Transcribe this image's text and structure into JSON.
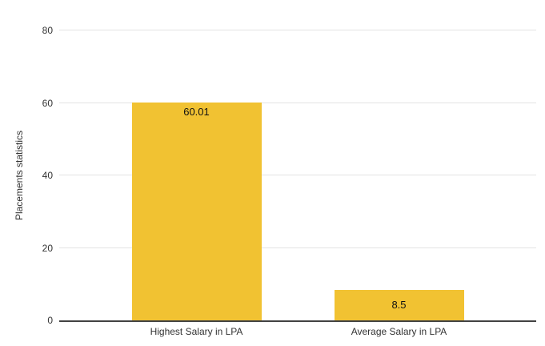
{
  "chart_data": {
    "type": "bar",
    "categories": [
      "Highest Salary in LPA",
      "Average Salary in LPA"
    ],
    "values": [
      60.01,
      8.5
    ],
    "value_labels": [
      "60.01",
      "8.5"
    ],
    "title": "",
    "xlabel": "",
    "ylabel": "Placements statistics",
    "ylim": [
      0,
      80
    ],
    "yticks": [
      0,
      20,
      40,
      60,
      80
    ],
    "grid": true,
    "legend": "none",
    "colors": {
      "bar": "#F1C232",
      "gridline": "#E3E3E3",
      "baseline": "#424242",
      "axis_text": "#333333",
      "value_text": "#111111",
      "background": "#FFFFFF"
    }
  }
}
